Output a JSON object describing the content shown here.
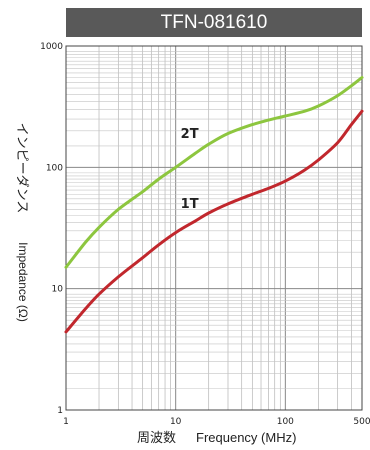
{
  "chart_data": {
    "type": "line",
    "title": "TFN-081610",
    "xlabel_jp": "周波数",
    "xlabel": "Frequency (MHz)",
    "ylabel_jp": "インピーダンス",
    "ylabel": "Impedance (Ω)",
    "x_scale": "log",
    "y_scale": "log",
    "xlim": [
      1,
      500
    ],
    "ylim": [
      1,
      1000
    ],
    "x_ticks": [
      "1",
      "10",
      "100",
      "500"
    ],
    "y_ticks": [
      "1",
      "10",
      "100",
      "1000"
    ],
    "grid": true,
    "series": [
      {
        "name": "2T",
        "color": "#8dc63f",
        "x": [
          1,
          1.5,
          2,
          3,
          5,
          7,
          10,
          15,
          20,
          30,
          50,
          70,
          100,
          150,
          200,
          300,
          400,
          500
        ],
        "y": [
          15,
          24,
          32,
          45,
          63,
          80,
          100,
          130,
          155,
          190,
          225,
          245,
          265,
          290,
          320,
          390,
          470,
          550
        ]
      },
      {
        "name": "1T",
        "color": "#c1272d",
        "x": [
          1,
          1.5,
          2,
          3,
          5,
          7,
          10,
          15,
          20,
          30,
          50,
          70,
          100,
          150,
          200,
          300,
          400,
          500
        ],
        "y": [
          4.4,
          6.8,
          9,
          12.5,
          18,
          23,
          29,
          36,
          42,
          50,
          60,
          67,
          77,
          95,
          115,
          160,
          225,
          290
        ]
      }
    ]
  }
}
